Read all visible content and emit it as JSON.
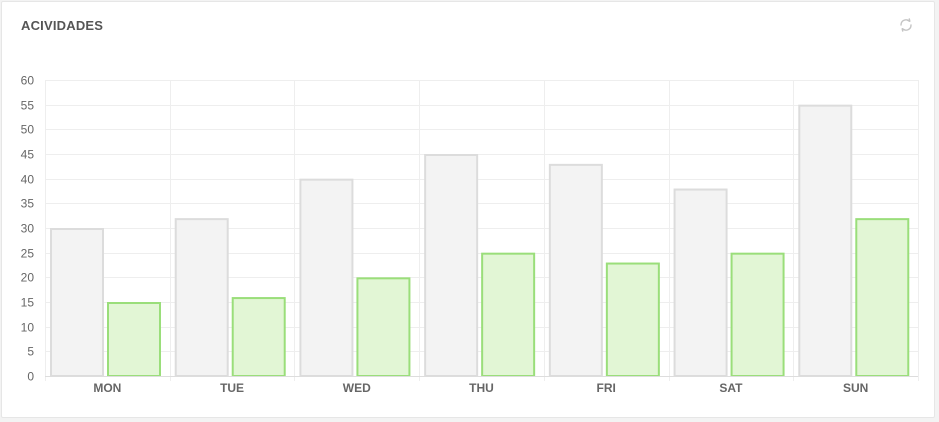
{
  "panel": {
    "title": "ACIVIDADES",
    "refresh_icon": "refresh-icon"
  },
  "colors": {
    "series1_fill": "#f3f3f3",
    "series1_stroke": "#dcdcdc",
    "series2_fill": "#e2f6d5",
    "series2_stroke": "#9ade7a",
    "grid": "#eeeeee",
    "axis_text": "#666666",
    "title_text": "#555555"
  },
  "chart_data": {
    "type": "bar",
    "categories": [
      "MON",
      "TUE",
      "WED",
      "THU",
      "FRI",
      "SAT",
      "SUN"
    ],
    "series": [
      {
        "values": [
          30,
          32,
          40,
          45,
          43,
          38,
          55
        ]
      },
      {
        "values": [
          15,
          16,
          20,
          25,
          23,
          25,
          32
        ]
      }
    ],
    "yticks": [
      0,
      5,
      10,
      15,
      20,
      25,
      30,
      35,
      40,
      45,
      50,
      55,
      60
    ],
    "ylim": [
      0,
      60
    ],
    "grid": true,
    "xlabel": "",
    "ylabel": ""
  }
}
